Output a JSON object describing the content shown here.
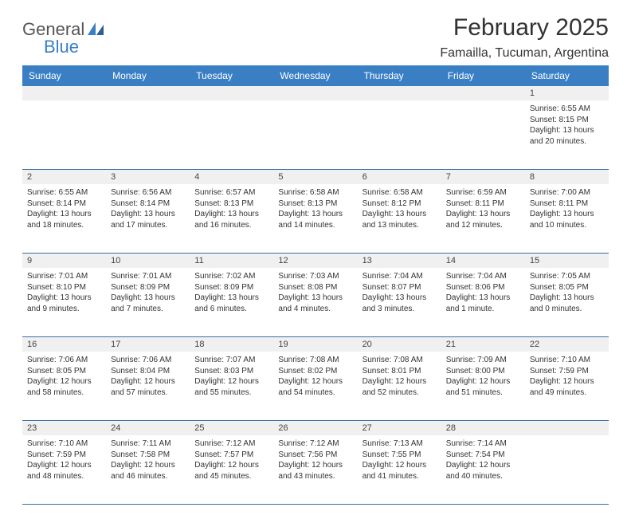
{
  "branding": {
    "logo_text_1": "General",
    "logo_text_2": "Blue"
  },
  "header": {
    "month_title": "February 2025",
    "location": "Famailla, Tucuman, Argentina"
  },
  "colors": {
    "header_bar": "#3a7fc4",
    "header_bar_text": "#ffffff",
    "day_strip_bg": "#f0f0f0",
    "week_divider": "#3a6fa5",
    "body_text": "#333333",
    "logo_gray": "#555555",
    "logo_blue": "#3a7fc4",
    "page_bg": "#ffffff"
  },
  "weekdays": [
    "Sunday",
    "Monday",
    "Tuesday",
    "Wednesday",
    "Thursday",
    "Friday",
    "Saturday"
  ],
  "weeks": [
    [
      {
        "day": ""
      },
      {
        "day": ""
      },
      {
        "day": ""
      },
      {
        "day": ""
      },
      {
        "day": ""
      },
      {
        "day": ""
      },
      {
        "day": "1",
        "sunrise": "Sunrise: 6:55 AM",
        "sunset": "Sunset: 8:15 PM",
        "daylight1": "Daylight: 13 hours",
        "daylight2": "and 20 minutes."
      }
    ],
    [
      {
        "day": "2",
        "sunrise": "Sunrise: 6:55 AM",
        "sunset": "Sunset: 8:14 PM",
        "daylight1": "Daylight: 13 hours",
        "daylight2": "and 18 minutes."
      },
      {
        "day": "3",
        "sunrise": "Sunrise: 6:56 AM",
        "sunset": "Sunset: 8:14 PM",
        "daylight1": "Daylight: 13 hours",
        "daylight2": "and 17 minutes."
      },
      {
        "day": "4",
        "sunrise": "Sunrise: 6:57 AM",
        "sunset": "Sunset: 8:13 PM",
        "daylight1": "Daylight: 13 hours",
        "daylight2": "and 16 minutes."
      },
      {
        "day": "5",
        "sunrise": "Sunrise: 6:58 AM",
        "sunset": "Sunset: 8:13 PM",
        "daylight1": "Daylight: 13 hours",
        "daylight2": "and 14 minutes."
      },
      {
        "day": "6",
        "sunrise": "Sunrise: 6:58 AM",
        "sunset": "Sunset: 8:12 PM",
        "daylight1": "Daylight: 13 hours",
        "daylight2": "and 13 minutes."
      },
      {
        "day": "7",
        "sunrise": "Sunrise: 6:59 AM",
        "sunset": "Sunset: 8:11 PM",
        "daylight1": "Daylight: 13 hours",
        "daylight2": "and 12 minutes."
      },
      {
        "day": "8",
        "sunrise": "Sunrise: 7:00 AM",
        "sunset": "Sunset: 8:11 PM",
        "daylight1": "Daylight: 13 hours",
        "daylight2": "and 10 minutes."
      }
    ],
    [
      {
        "day": "9",
        "sunrise": "Sunrise: 7:01 AM",
        "sunset": "Sunset: 8:10 PM",
        "daylight1": "Daylight: 13 hours",
        "daylight2": "and 9 minutes."
      },
      {
        "day": "10",
        "sunrise": "Sunrise: 7:01 AM",
        "sunset": "Sunset: 8:09 PM",
        "daylight1": "Daylight: 13 hours",
        "daylight2": "and 7 minutes."
      },
      {
        "day": "11",
        "sunrise": "Sunrise: 7:02 AM",
        "sunset": "Sunset: 8:09 PM",
        "daylight1": "Daylight: 13 hours",
        "daylight2": "and 6 minutes."
      },
      {
        "day": "12",
        "sunrise": "Sunrise: 7:03 AM",
        "sunset": "Sunset: 8:08 PM",
        "daylight1": "Daylight: 13 hours",
        "daylight2": "and 4 minutes."
      },
      {
        "day": "13",
        "sunrise": "Sunrise: 7:04 AM",
        "sunset": "Sunset: 8:07 PM",
        "daylight1": "Daylight: 13 hours",
        "daylight2": "and 3 minutes."
      },
      {
        "day": "14",
        "sunrise": "Sunrise: 7:04 AM",
        "sunset": "Sunset: 8:06 PM",
        "daylight1": "Daylight: 13 hours",
        "daylight2": "and 1 minute."
      },
      {
        "day": "15",
        "sunrise": "Sunrise: 7:05 AM",
        "sunset": "Sunset: 8:05 PM",
        "daylight1": "Daylight: 13 hours",
        "daylight2": "and 0 minutes."
      }
    ],
    [
      {
        "day": "16",
        "sunrise": "Sunrise: 7:06 AM",
        "sunset": "Sunset: 8:05 PM",
        "daylight1": "Daylight: 12 hours",
        "daylight2": "and 58 minutes."
      },
      {
        "day": "17",
        "sunrise": "Sunrise: 7:06 AM",
        "sunset": "Sunset: 8:04 PM",
        "daylight1": "Daylight: 12 hours",
        "daylight2": "and 57 minutes."
      },
      {
        "day": "18",
        "sunrise": "Sunrise: 7:07 AM",
        "sunset": "Sunset: 8:03 PM",
        "daylight1": "Daylight: 12 hours",
        "daylight2": "and 55 minutes."
      },
      {
        "day": "19",
        "sunrise": "Sunrise: 7:08 AM",
        "sunset": "Sunset: 8:02 PM",
        "daylight1": "Daylight: 12 hours",
        "daylight2": "and 54 minutes."
      },
      {
        "day": "20",
        "sunrise": "Sunrise: 7:08 AM",
        "sunset": "Sunset: 8:01 PM",
        "daylight1": "Daylight: 12 hours",
        "daylight2": "and 52 minutes."
      },
      {
        "day": "21",
        "sunrise": "Sunrise: 7:09 AM",
        "sunset": "Sunset: 8:00 PM",
        "daylight1": "Daylight: 12 hours",
        "daylight2": "and 51 minutes."
      },
      {
        "day": "22",
        "sunrise": "Sunrise: 7:10 AM",
        "sunset": "Sunset: 7:59 PM",
        "daylight1": "Daylight: 12 hours",
        "daylight2": "and 49 minutes."
      }
    ],
    [
      {
        "day": "23",
        "sunrise": "Sunrise: 7:10 AM",
        "sunset": "Sunset: 7:59 PM",
        "daylight1": "Daylight: 12 hours",
        "daylight2": "and 48 minutes."
      },
      {
        "day": "24",
        "sunrise": "Sunrise: 7:11 AM",
        "sunset": "Sunset: 7:58 PM",
        "daylight1": "Daylight: 12 hours",
        "daylight2": "and 46 minutes."
      },
      {
        "day": "25",
        "sunrise": "Sunrise: 7:12 AM",
        "sunset": "Sunset: 7:57 PM",
        "daylight1": "Daylight: 12 hours",
        "daylight2": "and 45 minutes."
      },
      {
        "day": "26",
        "sunrise": "Sunrise: 7:12 AM",
        "sunset": "Sunset: 7:56 PM",
        "daylight1": "Daylight: 12 hours",
        "daylight2": "and 43 minutes."
      },
      {
        "day": "27",
        "sunrise": "Sunrise: 7:13 AM",
        "sunset": "Sunset: 7:55 PM",
        "daylight1": "Daylight: 12 hours",
        "daylight2": "and 41 minutes."
      },
      {
        "day": "28",
        "sunrise": "Sunrise: 7:14 AM",
        "sunset": "Sunset: 7:54 PM",
        "daylight1": "Daylight: 12 hours",
        "daylight2": "and 40 minutes."
      },
      {
        "day": ""
      }
    ]
  ]
}
